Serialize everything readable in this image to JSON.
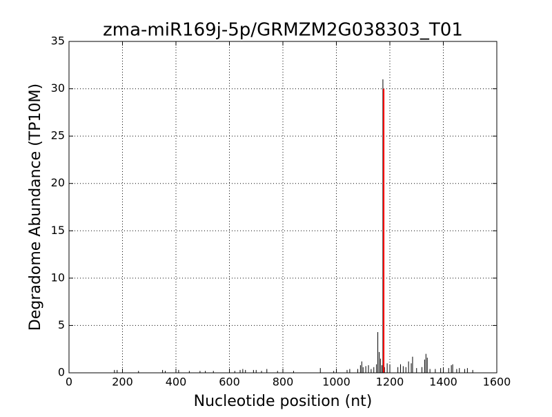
{
  "chart_data": {
    "type": "stem",
    "title": "zma-miR169j-5p/GRMZM2G038303_T01",
    "x_label": "Nucleotide position (nt)",
    "y_label": "Degradome Abundance (TP10M)",
    "xlim": [
      0,
      1600
    ],
    "xticks": [
      0,
      200,
      400,
      600,
      800,
      1000,
      1200,
      1400,
      1600
    ],
    "ylim": [
      0,
      35
    ],
    "yticks": [
      0,
      5,
      10,
      15,
      20,
      25,
      30,
      35
    ],
    "grid": true,
    "series": [
      {
        "color": "#000000",
        "x": [
          170,
          180,
          260,
          350,
          360,
          400,
          410,
          450,
          490,
          510,
          540,
          600,
          620,
          640,
          650,
          660,
          690,
          700,
          720,
          740,
          780,
          840,
          940,
          990,
          1040,
          1050,
          1080,
          1090,
          1095,
          1100,
          1110,
          1120,
          1130,
          1140,
          1150,
          1155,
          1160,
          1165,
          1170,
          1174,
          1180,
          1190,
          1200,
          1230,
          1240,
          1250,
          1260,
          1270,
          1280,
          1285,
          1300,
          1320,
          1330,
          1335,
          1340,
          1350,
          1370,
          1390,
          1400,
          1420,
          1430,
          1435,
          1450,
          1460,
          1480,
          1490,
          1510
        ],
        "values": [
          0.3,
          0.3,
          0.2,
          0.3,
          0.2,
          0.3,
          0.3,
          0.2,
          0.2,
          0.2,
          0.2,
          0.2,
          0.2,
          0.3,
          0.4,
          0.3,
          0.3,
          0.3,
          0.2,
          0.4,
          0.2,
          0.2,
          0.5,
          0.2,
          0.3,
          0.4,
          0.4,
          0.8,
          1.2,
          0.6,
          0.7,
          0.8,
          0.4,
          0.6,
          0.9,
          4.3,
          2.2,
          1.5,
          0.8,
          31,
          0.6,
          1.0,
          0.9,
          0.6,
          0.9,
          0.7,
          0.6,
          1.2,
          1.0,
          1.7,
          0.5,
          0.6,
          1.4,
          2.0,
          1.6,
          0.4,
          0.4,
          0.5,
          0.6,
          0.5,
          0.8,
          0.9,
          0.4,
          0.5,
          0.4,
          0.5,
          0.3
        ]
      },
      {
        "color": "#ff0000",
        "x": [
          1177
        ],
        "values": [
          30
        ]
      }
    ]
  }
}
